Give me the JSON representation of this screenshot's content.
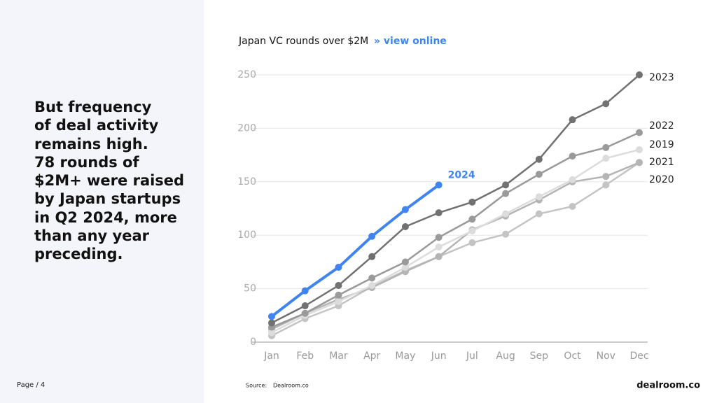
{
  "slide": {
    "text_lines": [
      "But frequency",
      "of deal activity",
      "remains high.",
      "78 rounds of",
      "$2M+ were raised",
      "by Japan startups",
      "in Q2 2024, more",
      "than any year",
      "preceding."
    ],
    "page_label": "Page / 4",
    "source_label": "Source:",
    "source": "Dealroom.co",
    "logo": "dealroom.co"
  },
  "chart_data": {
    "type": "line",
    "title": "Japan VC rounds over $2M",
    "link": "» view online",
    "categories": [
      "Jan",
      "Feb",
      "Mar",
      "Apr",
      "May",
      "Jun",
      "Jul",
      "Aug",
      "Sep",
      "Oct",
      "Nov",
      "Dec"
    ],
    "ylim": [
      0,
      250
    ],
    "yticks": [
      0,
      50,
      100,
      150,
      200,
      250
    ],
    "grid": true,
    "series": [
      {
        "name": "2020",
        "color": "#c4c4c4",
        "values": [
          6,
          22,
          34,
          52,
          67,
          80,
          93,
          101,
          120,
          127,
          147,
          168
        ]
      },
      {
        "name": "2021",
        "color": "#b4b4b4",
        "values": [
          12,
          27,
          40,
          51,
          66,
          80,
          105,
          118,
          133,
          150,
          155,
          168
        ]
      },
      {
        "name": "2019",
        "color": "#dcdcdc",
        "values": [
          9,
          25,
          38,
          53,
          70,
          89,
          104,
          120,
          136,
          152,
          172,
          180
        ]
      },
      {
        "name": "2022",
        "color": "#9a9a9a",
        "values": [
          14,
          27,
          44,
          60,
          75,
          98,
          115,
          139,
          157,
          174,
          182,
          196
        ]
      },
      {
        "name": "2023",
        "color": "#717171",
        "values": [
          18,
          34,
          53,
          80,
          108,
          121,
          131,
          147,
          171,
          208,
          223,
          250
        ]
      },
      {
        "name": "2024",
        "color": "#3f84f0",
        "values": [
          24,
          48,
          70,
          99,
          124,
          147,
          null,
          null,
          null,
          null,
          null,
          null
        ]
      }
    ]
  }
}
